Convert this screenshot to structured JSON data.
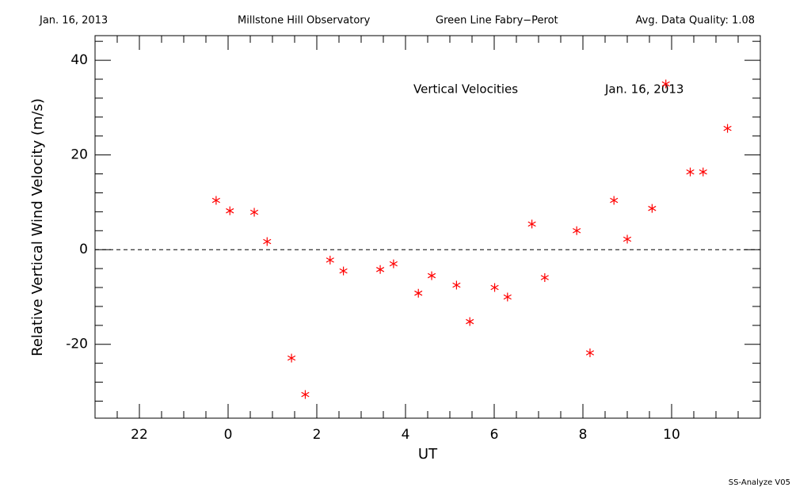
{
  "chart_data": {
    "type": "scatter",
    "header": [
      "Jan. 16, 2013",
      "Millstone Hill Observatory",
      "Green Line Fabry−Perot",
      "Avg. Data Quality: 1.08"
    ],
    "annotations": [
      "Vertical Velocities",
      "Jan. 16, 2013"
    ],
    "footer": "SS-Analyze V05",
    "x_label": "UT",
    "y_label": "Relative Vertical Wind Velocity (m/s)",
    "color": "#ff0000",
    "reference_line": 0,
    "xlim": [
      -3,
      12
    ],
    "ylim": [
      -35.6,
      45.2
    ],
    "xticks": [
      {
        "value": -2,
        "label": "22"
      },
      0,
      2,
      4,
      6,
      8,
      10
    ],
    "yticks": [
      -20,
      0,
      20,
      40
    ],
    "xminorticks": [
      -2.5,
      -1.5,
      -1,
      -0.5,
      0.5,
      1,
      1.5,
      2.5,
      3,
      3.5,
      4.5,
      5,
      5.5,
      6.5,
      7,
      7.5,
      8.5,
      9,
      9.5,
      10.5,
      11,
      11.5
    ],
    "yminorticks": [
      -32,
      -28,
      -24,
      -16,
      -12,
      -8,
      -4,
      4,
      8,
      12,
      16,
      24,
      28,
      32,
      36,
      44
    ],
    "x": [
      -0.27,
      0.04,
      0.59,
      0.88,
      1.43,
      1.74,
      2.3,
      2.6,
      3.43,
      3.73,
      4.29,
      4.59,
      5.15,
      5.45,
      6.01,
      6.3,
      6.85,
      7.14,
      7.86,
      8.16,
      8.7,
      9.0,
      9.56,
      9.87,
      10.42,
      10.71,
      11.26
    ],
    "values": [
      10.4,
      8.2,
      7.9,
      1.7,
      -22.9,
      -30.6,
      -2.2,
      -4.5,
      -4.2,
      -3.0,
      -9.2,
      -5.5,
      -7.5,
      -15.2,
      -8.0,
      -10.0,
      5.4,
      -5.9,
      4.0,
      -21.8,
      10.4,
      2.2,
      8.7,
      35.0,
      16.4,
      16.4,
      25.6
    ]
  }
}
